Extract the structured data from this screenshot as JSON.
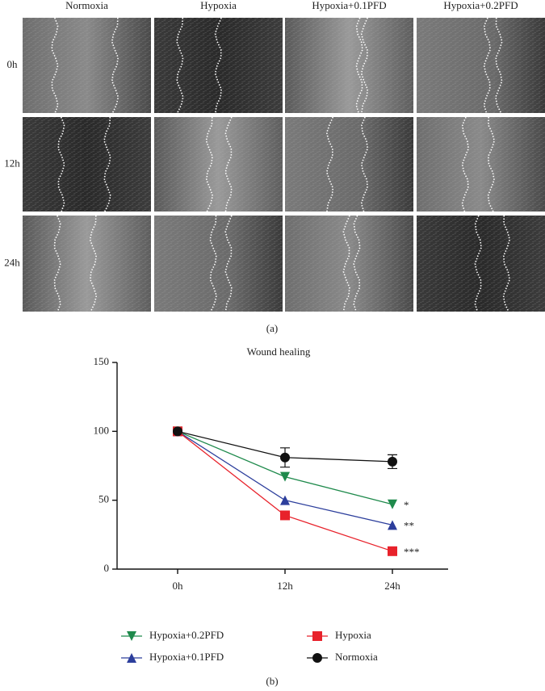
{
  "panel_a": {
    "columns": [
      "Normoxia",
      "Hypoxia",
      "Hypoxia+0.1PFD",
      "Hypoxia+0.2PFD"
    ],
    "rows": [
      "0h",
      "12h",
      "24h"
    ],
    "caption": "(a)"
  },
  "chart_data": {
    "type": "line",
    "title": "Wound healing",
    "categories": [
      "0h",
      "12h",
      "24h"
    ],
    "ylim": [
      0,
      150
    ],
    "yticks": [
      0,
      50,
      100,
      150
    ],
    "series": [
      {
        "name": "Hypoxia+0.2PFD",
        "color": "#1f8a4c",
        "marker": "triangle-down",
        "values": [
          100,
          67,
          47
        ],
        "significance": "*"
      },
      {
        "name": "Hypoxia+0.1PFD",
        "color": "#2c3e9c",
        "marker": "triangle-up",
        "values": [
          100,
          50,
          32
        ],
        "significance": "**"
      },
      {
        "name": "Hypoxia",
        "color": "#e8222b",
        "marker": "square",
        "values": [
          100,
          39,
          13
        ],
        "significance": "***"
      },
      {
        "name": "Normoxia",
        "color": "#111111",
        "marker": "circle",
        "values": [
          100,
          81,
          78
        ],
        "errors": [
          0,
          7,
          5
        ]
      }
    ]
  },
  "caption_b": "(b)"
}
